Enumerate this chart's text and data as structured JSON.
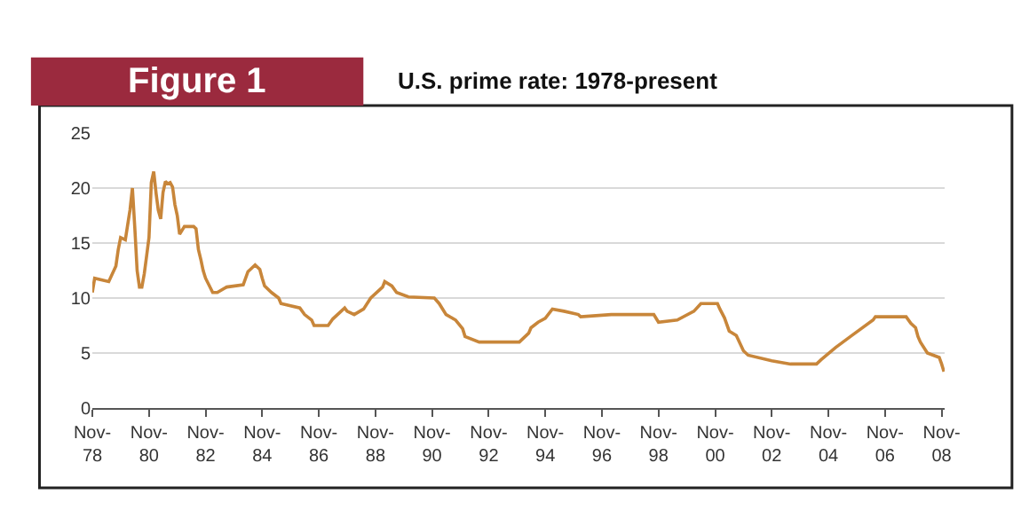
{
  "chart_data": {
    "type": "line",
    "title": "Figure 1",
    "subtitle": "U.S. prime rate: 1978-present",
    "x": [
      "1978-11",
      "1978-12",
      "1979-06",
      "1979-09",
      "1979-10",
      "1979-11",
      "1980-01",
      "1980-03",
      "1980-04",
      "1980-05",
      "1980-06",
      "1980-07",
      "1980-08",
      "1980-09",
      "1980-10",
      "1980-11",
      "1980-12",
      "1981-01",
      "1981-02",
      "1981-03",
      "1981-04",
      "1981-05",
      "1981-06",
      "1981-07",
      "1981-08",
      "1981-09",
      "1981-10",
      "1981-11",
      "1981-12",
      "1982-02",
      "1982-06",
      "1982-07",
      "1982-08",
      "1982-09",
      "1982-10",
      "1982-11",
      "1983-02",
      "1983-04",
      "1983-08",
      "1984-03",
      "1984-05",
      "1984-06",
      "1984-08",
      "1984-10",
      "1984-11",
      "1984-12",
      "1985-03",
      "1985-06",
      "1985-07",
      "1986-03",
      "1986-05",
      "1986-08",
      "1986-09",
      "1987-03",
      "1987-05",
      "1987-10",
      "1987-11",
      "1988-02",
      "1988-06",
      "1988-09",
      "1989-02",
      "1989-03",
      "1989-06",
      "1989-08",
      "1990-01",
      "1990-12",
      "1991-02",
      "1991-05",
      "1991-09",
      "1991-12",
      "1992-01",
      "1992-07",
      "1993-12",
      "1994-04",
      "1994-05",
      "1994-08",
      "1994-11",
      "1995-02",
      "1995-07",
      "1996-01",
      "1996-02",
      "1997-03",
      "1998-09",
      "1998-11",
      "1999-07",
      "2000-02",
      "2000-05",
      "2000-12",
      "2001-01",
      "2001-03",
      "2001-05",
      "2001-08",
      "2001-11",
      "2002-01",
      "2002-11",
      "2003-07",
      "2004-06",
      "2004-08",
      "2005-02",
      "2005-09",
      "2006-06",
      "2006-07",
      "2007-08",
      "2007-10",
      "2007-12",
      "2008-01",
      "2008-02",
      "2008-05",
      "2008-10",
      "2008-11",
      "2008-12"
    ],
    "series": [
      {
        "color": "#c8863a",
        "values": [
          10.5,
          11.8,
          11.5,
          12.9,
          14.4,
          15.5,
          15.3,
          18.0,
          20.0,
          16.5,
          12.5,
          11.0,
          11.0,
          12.2,
          13.8,
          15.5,
          20.5,
          21.5,
          19.5,
          18.0,
          17.2,
          19.6,
          20.6,
          20.4,
          20.5,
          20.1,
          18.5,
          17.5,
          15.8,
          16.5,
          16.5,
          16.3,
          14.4,
          13.5,
          12.5,
          11.8,
          10.5,
          10.5,
          11.0,
          11.2,
          12.4,
          12.6,
          13.0,
          12.6,
          11.8,
          11.1,
          10.5,
          10.0,
          9.5,
          9.1,
          8.5,
          8.0,
          7.5,
          7.5,
          8.1,
          9.1,
          8.8,
          8.5,
          9.0,
          10.0,
          11.0,
          11.5,
          11.1,
          10.5,
          10.1,
          10.0,
          9.5,
          8.5,
          8.0,
          7.2,
          6.5,
          6.0,
          6.0,
          6.8,
          7.3,
          7.8,
          8.15,
          9.0,
          8.8,
          8.5,
          8.3,
          8.5,
          8.5,
          7.8,
          8.0,
          8.8,
          9.5,
          9.5,
          9.0,
          8.2,
          7.0,
          6.6,
          5.2,
          4.8,
          4.3,
          4.0,
          4.0,
          4.4,
          5.5,
          6.6,
          8.0,
          8.3,
          8.3,
          7.7,
          7.3,
          6.5,
          6.0,
          5.0,
          4.6,
          4.0,
          3.3
        ]
      }
    ],
    "xlim": [
      "1978-11",
      "2008-12-10"
    ],
    "xticks": [
      {
        "value": "1978-11",
        "label": "Nov-\n78"
      },
      {
        "value": "1980-11",
        "label": "Nov-\n80"
      },
      {
        "value": "1982-11",
        "label": "Nov-\n82"
      },
      {
        "value": "1984-11",
        "label": "Nov-\n84"
      },
      {
        "value": "1986-11",
        "label": "Nov-\n86"
      },
      {
        "value": "1988-11",
        "label": "Nov-\n88"
      },
      {
        "value": "1990-11",
        "label": "Nov-\n90"
      },
      {
        "value": "1992-11",
        "label": "Nov-\n92"
      },
      {
        "value": "1994-11",
        "label": "Nov-\n94"
      },
      {
        "value": "1996-11",
        "label": "Nov-\n96"
      },
      {
        "value": "1998-11",
        "label": "Nov-\n98"
      },
      {
        "value": "2000-11",
        "label": "Nov-\n00"
      },
      {
        "value": "2002-11",
        "label": "Nov-\n02"
      },
      {
        "value": "2004-11",
        "label": "Nov-\n04"
      },
      {
        "value": "2006-11",
        "label": "Nov-\n06"
      },
      {
        "value": "2008-11",
        "label": "Nov-\n08"
      }
    ],
    "ylim": [
      0,
      25
    ],
    "yticks": [
      0,
      5,
      10,
      15,
      20,
      25
    ],
    "grid": "y",
    "marker": "none",
    "line_style": "solid"
  }
}
